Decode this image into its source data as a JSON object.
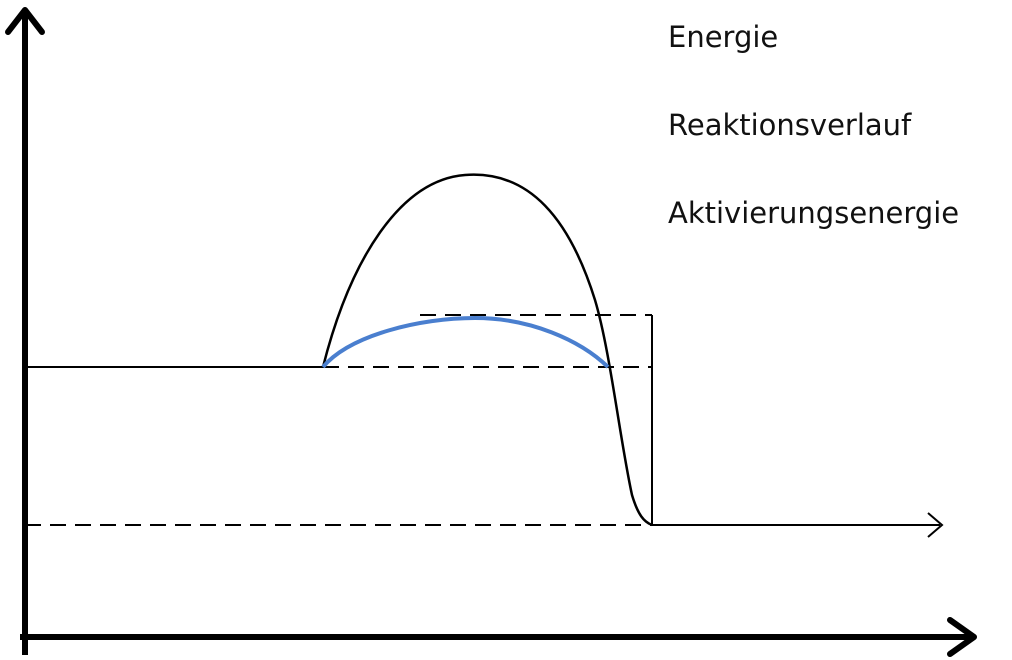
{
  "labels": {
    "energy": "Energie",
    "reaction_progress": "Reaktionsverlauf",
    "activation_energy": "Aktivierungsenergie"
  },
  "colors": {
    "line": "#000000",
    "catalyzed_curve": "#4a7fcf"
  }
}
